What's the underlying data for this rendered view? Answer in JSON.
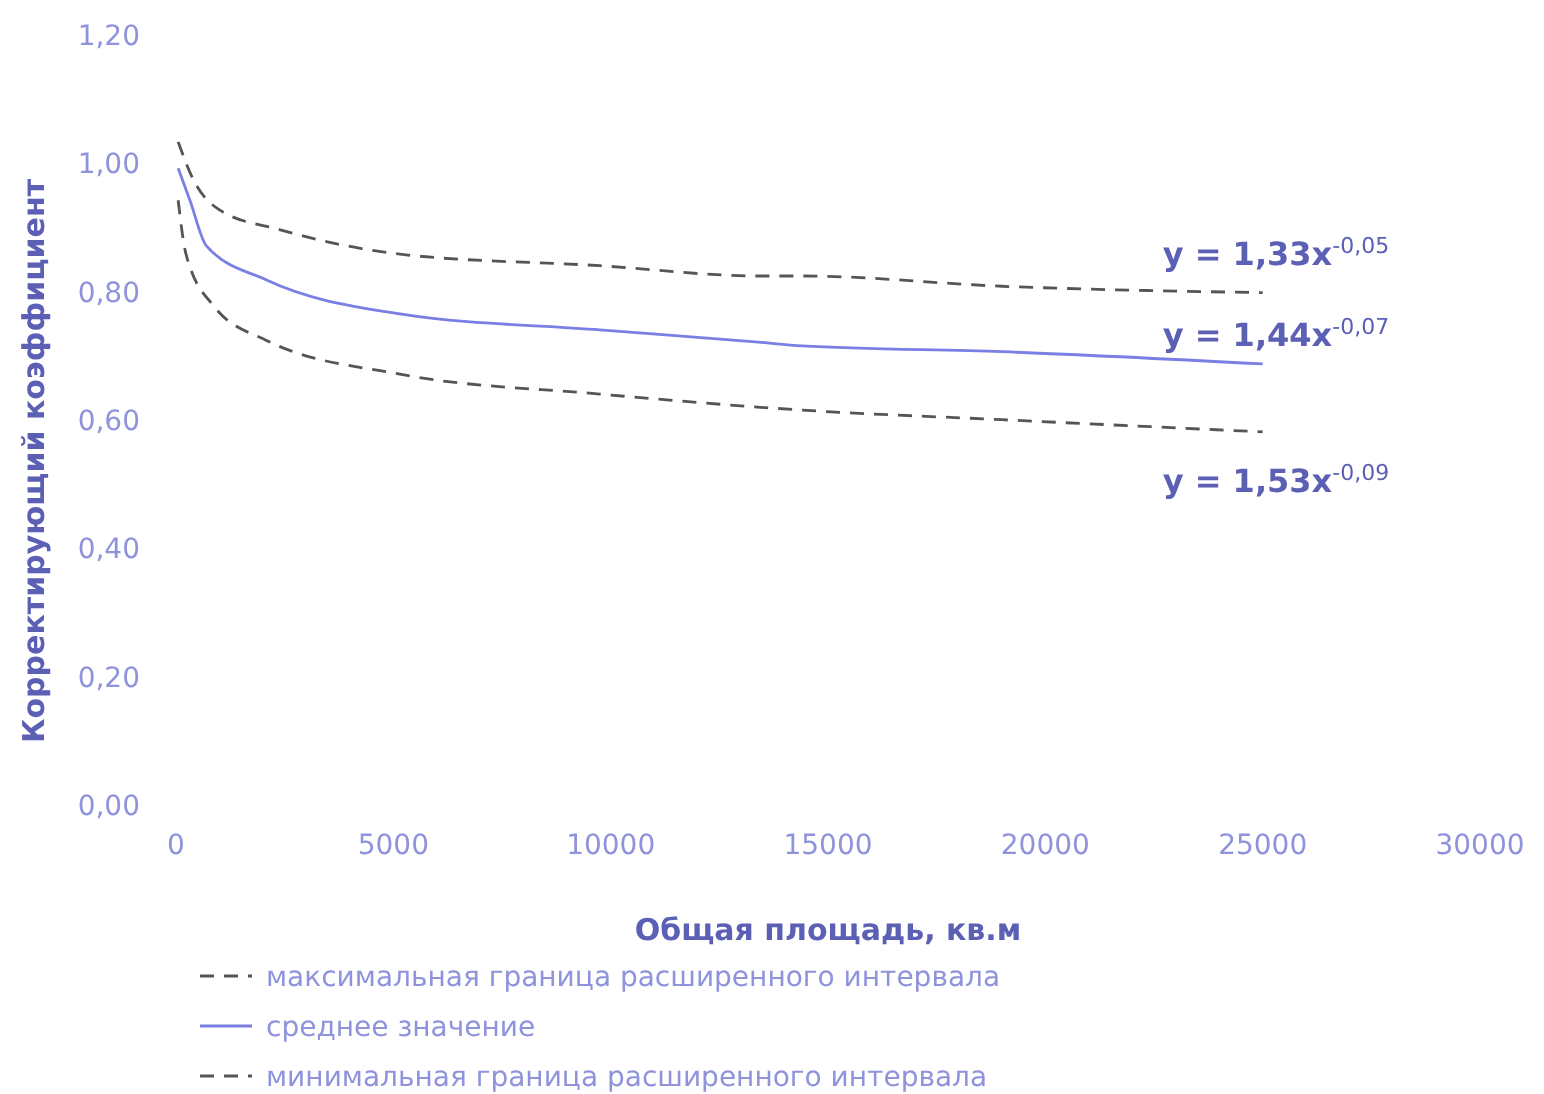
{
  "chart_data": {
    "type": "line",
    "xlabel": "Общая площадь, кв.м",
    "ylabel": "Корректирующий коэффициент",
    "xlim": [
      0,
      30000
    ],
    "xticks": [
      0,
      5000,
      10000,
      15000,
      20000,
      25000,
      30000
    ],
    "ylim": [
      0,
      1.2
    ],
    "yticks": [
      {
        "value": 0,
        "label": "0,00"
      },
      {
        "value": 0.2,
        "label": "0,20"
      },
      {
        "value": 0.4,
        "label": "0,40"
      },
      {
        "value": 0.6,
        "label": "0,60"
      },
      {
        "value": 0.8,
        "label": "0,80"
      },
      {
        "value": 1.0,
        "label": "1,00"
      },
      {
        "value": 1.2,
        "label": "1,20"
      }
    ],
    "grid": false,
    "legend": "bottom",
    "marker": "none",
    "series": [
      {
        "name": "максимальная граница расширенного интервала",
        "color": "#555555",
        "line_style": "dashed",
        "x": [
          50,
          400,
          1000,
          2400,
          5150,
          9750,
          13400,
          14400,
          19000,
          25000
        ],
        "values": [
          1.035,
          0.976,
          0.929,
          0.898,
          0.86,
          0.842,
          0.826,
          0.826,
          0.81,
          0.8
        ]
      },
      {
        "name": "среднее значение",
        "color": "#7b7fe3",
        "line_style": "solid",
        "x": [
          50,
          320,
          700,
          2070,
          5150,
          9750,
          13400,
          14400,
          19000,
          25000
        ],
        "values": [
          0.994,
          0.944,
          0.873,
          0.82,
          0.767,
          0.742,
          0.723,
          0.717,
          0.708,
          0.689
        ]
      },
      {
        "name": "минимальная граница расширенного интервала",
        "color": "#555555",
        "line_style": "dashed",
        "x": [
          50,
          230,
          870,
          2070,
          5150,
          9750,
          14400,
          19000,
          25000
        ],
        "values": [
          0.944,
          0.86,
          0.779,
          0.726,
          0.673,
          0.642,
          0.617,
          0.602,
          0.583
        ]
      }
    ],
    "annotations": [
      "y = 1,33x$^{-0,05}$",
      "y = 1,44x$^{-0,07}$",
      "y = 1,53x$^{-0,09}$"
    ]
  }
}
